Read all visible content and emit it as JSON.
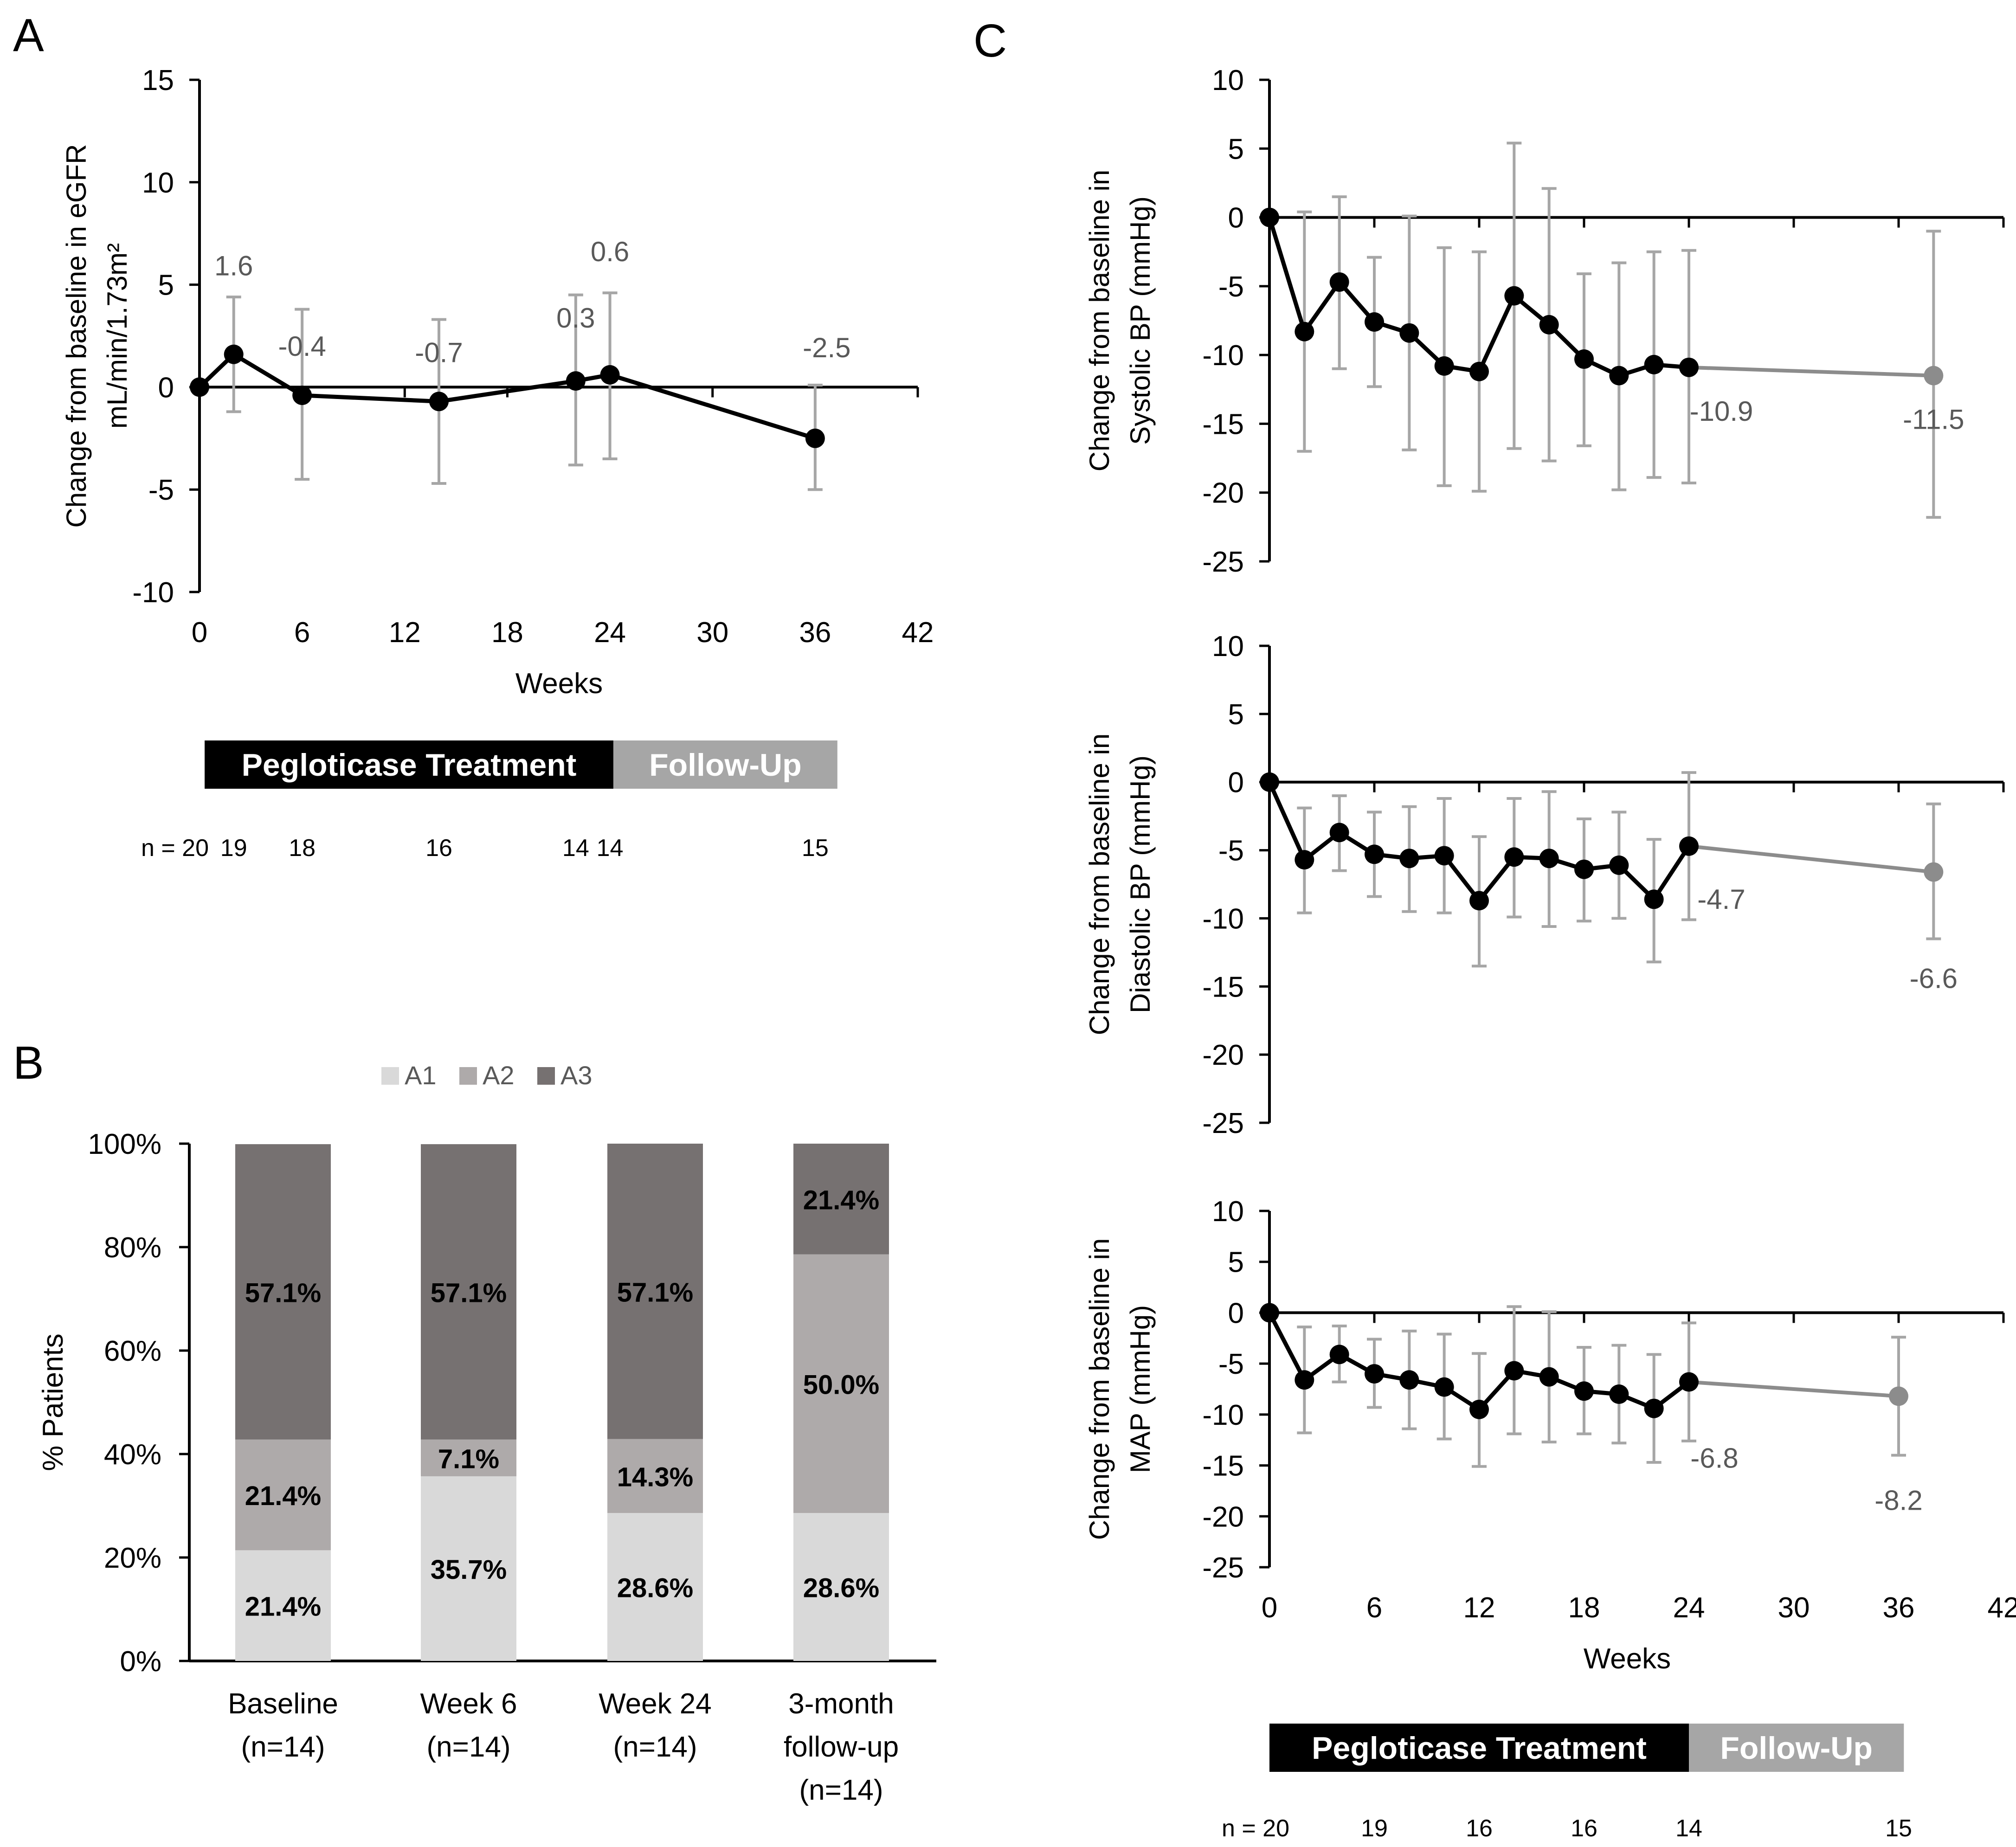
{
  "panel_labels": {
    "a": "A",
    "b": "B",
    "c": "C"
  },
  "colors": {
    "axis": "#000000",
    "line": "#000000",
    "errorbar": "#a6a6a6",
    "label": "#595959",
    "followup_line": "#8c8c8c",
    "followup_marker": "#8c8c8c",
    "a1": "#d9d9d9",
    "a2": "#aeaaaa",
    "a3": "#767171",
    "treatment_bar": "#000000",
    "followup_bar": "#a6a6a6"
  },
  "chart_data": [
    {
      "id": "panelA",
      "type": "line",
      "ylabel_lines": [
        "Change from baseline in eGFR",
        "mL/min/1.73m²"
      ],
      "xlabel": "Weeks",
      "xlim": [
        0,
        42
      ],
      "ylim": [
        -10,
        15
      ],
      "xticks": [
        0,
        6,
        12,
        18,
        24,
        30,
        36,
        42
      ],
      "yticks": [
        -10,
        -5,
        0,
        5,
        10,
        15
      ],
      "points": [
        {
          "x": 0,
          "y": 0,
          "lo": 0,
          "hi": 0,
          "label": ""
        },
        {
          "x": 2,
          "y": 1.6,
          "lo": -1.2,
          "hi": 4.4,
          "label": "1.6"
        },
        {
          "x": 6,
          "y": -0.4,
          "lo": -4.5,
          "hi": 3.8,
          "label": "-0.4"
        },
        {
          "x": 14,
          "y": -0.7,
          "lo": -4.7,
          "hi": 3.3,
          "label": "-0.7"
        },
        {
          "x": 22,
          "y": 0.3,
          "lo": -3.8,
          "hi": 4.5,
          "label": "0.3"
        },
        {
          "x": 24,
          "y": 0.6,
          "lo": -3.5,
          "hi": 4.6,
          "label": "0.6"
        },
        {
          "x": 36,
          "y": -2.5,
          "lo": -5.0,
          "hi": 0.1,
          "label": "-2.5"
        }
      ],
      "treatment_label": "Pegloticase Treatment",
      "followup_label": "Follow-Up",
      "n_prefix": "n = 20",
      "n_counts": [
        {
          "x": 2,
          "n": "19"
        },
        {
          "x": 6,
          "n": "18"
        },
        {
          "x": 14,
          "n": "16"
        },
        {
          "x": 22,
          "n": "14"
        },
        {
          "x": 24,
          "n": "14"
        },
        {
          "x": 36,
          "n": "15"
        }
      ]
    },
    {
      "id": "panelB",
      "type": "bar",
      "stacked": true,
      "ylabel": "% Patients",
      "yticks": [
        "0%",
        "20%",
        "40%",
        "60%",
        "80%",
        "100%"
      ],
      "legend": [
        "A1",
        "A2",
        "A3"
      ],
      "categories": [
        [
          "Baseline",
          "(n=14)"
        ],
        [
          "Week 6",
          "(n=14)"
        ],
        [
          "Week 24",
          "(n=14)"
        ],
        [
          "3-month",
          "follow-up",
          "(n=14)"
        ]
      ],
      "series": [
        {
          "name": "A1",
          "values": [
            21.4,
            35.7,
            28.6,
            28.6
          ],
          "labels": [
            "21.4%",
            "35.7%",
            "28.6%",
            "28.6%"
          ]
        },
        {
          "name": "A2",
          "values": [
            21.4,
            7.1,
            14.3,
            50.0
          ],
          "labels": [
            "21.4%",
            "7.1%",
            "14.3%",
            "50.0%"
          ]
        },
        {
          "name": "A3",
          "values": [
            57.1,
            57.1,
            57.1,
            21.4
          ],
          "labels": [
            "57.1%",
            "57.1%",
            "57.1%",
            "21.4%"
          ]
        }
      ]
    },
    {
      "id": "panelC1",
      "type": "line",
      "ylabel_lines": [
        "Change from baseline in",
        "Systolic BP (mmHg)"
      ],
      "xlim": [
        0,
        42
      ],
      "ylim": [
        -25,
        10
      ],
      "yticks": [
        -25,
        -20,
        -15,
        -10,
        -5,
        0,
        5,
        10
      ],
      "xticks": [
        0,
        6,
        12,
        18,
        24,
        30,
        36,
        42
      ],
      "points": [
        {
          "x": 0,
          "y": 0,
          "lo": 0,
          "hi": 0
        },
        {
          "x": 2,
          "y": -8.3,
          "lo": -17.0,
          "hi": 0.4
        },
        {
          "x": 4,
          "y": -4.7,
          "lo": -11.0,
          "hi": 1.5
        },
        {
          "x": 6,
          "y": -7.6,
          "lo": -12.3,
          "hi": -2.9
        },
        {
          "x": 8,
          "y": -8.4,
          "lo": -16.9,
          "hi": 0.1
        },
        {
          "x": 10,
          "y": -10.8,
          "lo": -19.5,
          "hi": -2.2
        },
        {
          "x": 12,
          "y": -11.2,
          "lo": -19.9,
          "hi": -2.5
        },
        {
          "x": 14,
          "y": -5.7,
          "lo": -16.8,
          "hi": 5.4
        },
        {
          "x": 16,
          "y": -7.8,
          "lo": -17.7,
          "hi": 2.1
        },
        {
          "x": 18,
          "y": -10.3,
          "lo": -16.6,
          "hi": -4.1
        },
        {
          "x": 20,
          "y": -11.5,
          "lo": -19.8,
          "hi": -3.3
        },
        {
          "x": 22,
          "y": -10.7,
          "lo": -18.9,
          "hi": -2.5
        },
        {
          "x": 24,
          "y": -10.9,
          "lo": -19.3,
          "hi": -2.4
        }
      ],
      "followup_point": {
        "x": 38,
        "y": -11.5,
        "lo": -21.8,
        "hi": -1.0
      },
      "last_label": "-10.9",
      "followup_label": "-11.5"
    },
    {
      "id": "panelC2",
      "type": "line",
      "ylabel_lines": [
        "Change from baseline in",
        "Diastolic BP (mmHg)"
      ],
      "xlim": [
        0,
        42
      ],
      "ylim": [
        -25,
        10
      ],
      "yticks": [
        -25,
        -20,
        -15,
        -10,
        -5,
        0,
        5,
        10
      ],
      "xticks": [
        0,
        6,
        12,
        18,
        24,
        30,
        36,
        42
      ],
      "points": [
        {
          "x": 0,
          "y": 0,
          "lo": 0,
          "hi": 0
        },
        {
          "x": 2,
          "y": -5.7,
          "lo": -9.6,
          "hi": -1.9
        },
        {
          "x": 4,
          "y": -3.7,
          "lo": -6.5,
          "hi": -1.0
        },
        {
          "x": 6,
          "y": -5.3,
          "lo": -8.4,
          "hi": -2.2
        },
        {
          "x": 8,
          "y": -5.6,
          "lo": -9.5,
          "hi": -1.8
        },
        {
          "x": 10,
          "y": -5.4,
          "lo": -9.6,
          "hi": -1.2
        },
        {
          "x": 12,
          "y": -8.7,
          "lo": -13.5,
          "hi": -4.0
        },
        {
          "x": 14,
          "y": -5.5,
          "lo": -9.9,
          "hi": -1.2
        },
        {
          "x": 16,
          "y": -5.6,
          "lo": -10.6,
          "hi": -0.7
        },
        {
          "x": 18,
          "y": -6.4,
          "lo": -10.2,
          "hi": -2.7
        },
        {
          "x": 20,
          "y": -6.1,
          "lo": -10.0,
          "hi": -2.2
        },
        {
          "x": 22,
          "y": -8.6,
          "lo": -13.2,
          "hi": -4.2
        },
        {
          "x": 24,
          "y": -4.7,
          "lo": -10.1,
          "hi": 0.7
        }
      ],
      "followup_point": {
        "x": 38,
        "y": -6.6,
        "lo": -11.5,
        "hi": -1.6
      },
      "last_label": "-4.7",
      "followup_label": "-6.6"
    },
    {
      "id": "panelC3",
      "type": "line",
      "ylabel_lines": [
        "Change from baseline in",
        "MAP (mmHg)"
      ],
      "xlabel": "Weeks",
      "xlim": [
        0,
        42
      ],
      "ylim": [
        -25,
        10
      ],
      "yticks": [
        -25,
        -20,
        -15,
        -10,
        -5,
        0,
        5,
        10
      ],
      "xticks": [
        0,
        6,
        12,
        18,
        24,
        30,
        36,
        42
      ],
      "points": [
        {
          "x": 0,
          "y": 0,
          "lo": 0,
          "hi": 0
        },
        {
          "x": 2,
          "y": -6.6,
          "lo": -11.8,
          "hi": -1.4
        },
        {
          "x": 4,
          "y": -4.1,
          "lo": -6.8,
          "hi": -1.3
        },
        {
          "x": 6,
          "y": -6.0,
          "lo": -9.3,
          "hi": -2.6
        },
        {
          "x": 8,
          "y": -6.6,
          "lo": -11.4,
          "hi": -1.8
        },
        {
          "x": 10,
          "y": -7.3,
          "lo": -12.4,
          "hi": -2.1
        },
        {
          "x": 12,
          "y": -9.5,
          "lo": -15.1,
          "hi": -4.0
        },
        {
          "x": 14,
          "y": -5.7,
          "lo": -11.9,
          "hi": 0.6
        },
        {
          "x": 16,
          "y": -6.3,
          "lo": -12.7,
          "hi": 0.1
        },
        {
          "x": 18,
          "y": -7.7,
          "lo": -11.9,
          "hi": -3.4
        },
        {
          "x": 20,
          "y": -8.0,
          "lo": -12.8,
          "hi": -3.2
        },
        {
          "x": 22,
          "y": -9.4,
          "lo": -14.7,
          "hi": -4.1
        },
        {
          "x": 24,
          "y": -6.8,
          "lo": -12.6,
          "hi": -1.0
        }
      ],
      "followup_point": {
        "x": 36,
        "y": -8.2,
        "lo": -14.0,
        "hi": -2.4
      },
      "last_label": "-6.8",
      "followup_label": "-8.2",
      "treatment_label": "Pegloticase Treatment",
      "followup_bar_label": "Follow-Up",
      "n_prefix": "n = 20",
      "n_counts": [
        {
          "x": 6,
          "n": "19"
        },
        {
          "x": 12,
          "n": "16"
        },
        {
          "x": 18,
          "n": "16"
        },
        {
          "x": 24,
          "n": "14"
        },
        {
          "x": 36,
          "n": "15"
        }
      ]
    }
  ]
}
